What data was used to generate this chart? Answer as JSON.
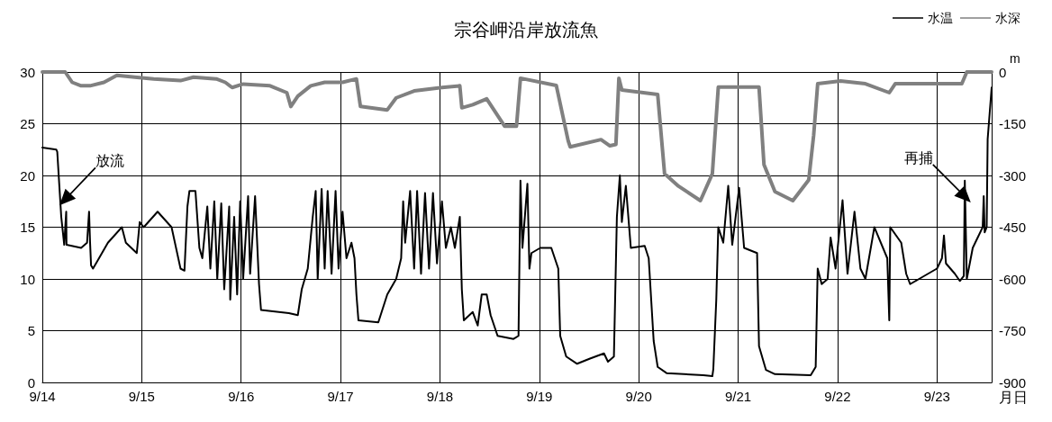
{
  "chart_data": {
    "type": "line",
    "title": "宗谷岬沿岸放流魚",
    "xlabel": "月日",
    "y2label": "m",
    "xlim": [
      "--09-14T00:00",
      "--09-23T13:12"
    ],
    "xticks": [
      {
        "value": "--09-14",
        "label": "9/14"
      },
      {
        "value": "--09-15",
        "label": "9/15"
      },
      {
        "value": "--09-16",
        "label": "9/16"
      },
      {
        "value": "--09-17",
        "label": "9/17"
      },
      {
        "value": "--09-18",
        "label": "9/18"
      },
      {
        "value": "--09-19",
        "label": "9/19"
      },
      {
        "value": "--09-20",
        "label": "9/20"
      },
      {
        "value": "--09-21",
        "label": "9/21"
      },
      {
        "value": "--09-22",
        "label": "9/22"
      },
      {
        "value": "--09-23",
        "label": "9/23"
      }
    ],
    "ylim": [
      0,
      30
    ],
    "yticks": [
      0,
      5,
      10,
      15,
      20,
      25,
      30
    ],
    "y2lim": [
      -900,
      0
    ],
    "y2ticks": [
      -900,
      -750,
      -600,
      -450,
      -300,
      -150,
      0
    ],
    "grid": true,
    "legend": "top right",
    "marker": "none",
    "line_style": "solid",
    "annotations": [
      "放流",
      "再捕"
    ],
    "series": [
      {
        "name": "水温",
        "color": "#000000",
        "x": [
          "--09-14T00:00",
          "--09-14T03:22",
          "--09-14T03:36",
          "--09-14T04:34",
          "--09-14T05:17",
          "--09-14T05:46",
          "--09-14T05:50",
          "--09-14T09:22",
          "--09-14T10:48",
          "--09-14T11:17",
          "--09-14T11:31",
          "--09-14T11:46",
          "--09-14T12:14",
          "--09-14T13:41",
          "--09-14T15:50",
          "--09-14T19:12",
          "--09-14T20:10",
          "--09-14T22:48",
          "--09-14T23:31",
          "--09-15T00:29",
          "--09-15T03:50",
          "--09-15T07:12",
          "--09-15T09:22",
          "--09-15T10:19",
          "--09-15T11:02",
          "--09-15T11:31",
          "--09-15T12:58",
          "--09-15T13:55",
          "--09-15T14:38",
          "--09-15T15:50",
          "--09-15T16:34",
          "--09-15T17:31",
          "--09-15T18:14",
          "--09-15T19:12",
          "--09-15T19:55",
          "--09-15T21:07",
          "--09-15T21:22",
          "--09-15T22:19",
          "--09-15T23:02",
          "--09-15T23:46",
          "--09-16T00:29",
          "--09-16T01:41",
          "--09-16T02:10",
          "--09-16T03:22",
          "--09-16T04:19",
          "--09-16T04:48",
          "--09-16T11:31",
          "--09-16T13:41",
          "--09-16T14:38",
          "--09-16T16:05",
          "--09-16T17:17",
          "--09-16T18:00",
          "--09-16T18:29",
          "--09-16T19:26",
          "--09-16T20:10",
          "--09-16T20:53",
          "--09-16T21:50",
          "--09-16T22:48",
          "--09-16T23:31",
          "--09-17T00:29",
          "--09-17T01:26",
          "--09-17T02:38",
          "--09-17T03:22",
          "--09-17T03:50",
          "--09-17T04:19",
          "--09-17T09:07",
          "--09-17T11:17",
          "--09-17T13:26",
          "--09-17T14:38",
          "--09-17T15:07",
          "--09-17T15:36",
          "--09-17T16:48",
          "--09-17T17:46",
          "--09-17T18:29",
          "--09-17T19:26",
          "--09-17T20:24",
          "--09-17T21:22",
          "--09-17T22:19",
          "--09-17T23:17",
          "--09-18T00:29",
          "--09-18T01:26",
          "--09-18T02:38",
          "--09-18T03:36",
          "--09-18T04:48",
          "--09-18T05:17",
          "--09-18T05:46",
          "--09-18T07:55",
          "--09-18T09:07",
          "--09-18T10:05",
          "--09-18T11:17",
          "--09-18T12:14",
          "--09-18T13:55",
          "--09-18T17:46",
          "--09-18T18:58",
          "--09-18T19:26",
          "--09-18T19:55",
          "--09-18T21:07",
          "--09-18T21:36",
          "--09-18T22:05",
          "--09-19T00:14",
          "--09-19T02:53",
          "--09-19T04:34",
          "--09-19T05:02",
          "--09-19T06:29",
          "--09-19T09:07",
          "--09-19T12:14",
          "--09-19T15:36",
          "--09-19T16:34",
          "--09-19T18:00",
          "--09-19T18:43",
          "--09-19T19:26",
          "--09-19T19:55",
          "--09-19T20:53",
          "--09-19T22:05",
          "--09-20T01:26",
          "--09-20T02:24",
          "--09-20T03:36",
          "--09-20T04:34",
          "--09-20T06:43",
          "--09-20T15:36",
          "--09-20T17:46",
          "--09-20T18:00",
          "--09-20T18:43",
          "--09-20T19:12",
          "--09-20T20:24",
          "--09-20T21:36",
          "--09-20T22:34",
          "--09-21T00:14",
          "--09-21T01:26",
          "--09-21T04:34",
          "--09-21T05:02",
          "--09-21T06:43",
          "--09-21T08:53",
          "--09-21T17:31",
          "--09-21T18:43",
          "--09-21T19:12",
          "--09-21T20:10",
          "--09-21T21:36",
          "--09-21T22:19",
          "--09-21T23:31",
          "--09-22T01:12",
          "--09-22T02:24",
          "--09-22T04:05",
          "--09-22T05:31",
          "--09-22T06:43",
          "--09-22T08:53",
          "--09-22T12:00",
          "--09-22T12:29",
          "--09-22T12:43",
          "--09-22T15:22",
          "--09-22T16:34",
          "--09-22T17:31",
          "--09-22T19:41",
          "--09-22T21:50",
          "--09-23T00:00",
          "--09-23T01:12",
          "--09-23T01:41",
          "--09-23T02:10",
          "--09-23T04:19",
          "--09-23T05:31",
          "--09-23T06:29",
          "--09-23T06:43",
          "--09-23T07:12",
          "--09-23T08:38",
          "--09-23T11:02",
          "--09-23T11:17",
          "--09-23T11:31",
          "--09-23T12:00",
          "--09-23T12:14",
          "--09-23T13:12"
        ],
        "values": [
          22.7,
          22.5,
          22.3,
          16,
          13.3,
          16.5,
          13.3,
          13,
          13.5,
          16.5,
          13.6,
          11.3,
          11,
          12,
          13.5,
          15,
          13.5,
          12.5,
          15.5,
          15,
          16.5,
          15,
          11,
          10.8,
          17,
          18.5,
          18.5,
          13,
          12,
          17,
          11,
          17.5,
          10,
          17.3,
          9,
          17,
          8,
          16,
          8.5,
          17.5,
          10,
          18,
          10.5,
          18,
          9.5,
          7,
          6.7,
          6.5,
          9,
          11,
          16,
          18.5,
          10,
          18.7,
          11,
          18.5,
          10.5,
          18.5,
          11,
          16.5,
          12,
          13.5,
          12,
          8.5,
          6,
          5.8,
          8.5,
          10,
          12,
          17.5,
          13.5,
          18.5,
          11,
          18.5,
          10.5,
          18.3,
          11,
          18.3,
          11.5,
          17.5,
          13,
          15,
          13,
          16,
          9,
          6,
          6.8,
          5.5,
          8.5,
          8.5,
          6.5,
          4.5,
          4.2,
          4.5,
          19.5,
          13,
          19.2,
          11,
          12.5,
          13,
          13,
          11,
          4.5,
          2.5,
          1.8,
          2.3,
          2.8,
          2,
          2.5,
          16,
          20,
          15.5,
          19,
          13,
          13.2,
          12,
          4,
          1.5,
          0.9,
          0.7,
          0.6,
          1.3,
          8,
          15,
          13.5,
          19,
          13.3,
          18.8,
          13,
          12.5,
          3.5,
          1.2,
          0.8,
          0.7,
          1.5,
          11,
          9.5,
          10,
          14,
          11,
          17.6,
          10.5,
          16.5,
          11,
          10,
          15,
          12,
          6,
          15,
          13.5,
          10.5,
          9.5,
          10,
          10.5,
          11,
          12,
          14.2,
          11.5,
          10.5,
          9.8,
          10.3,
          19.5,
          10,
          13,
          15,
          18,
          14.5,
          15,
          23.5,
          28.5
        ]
      },
      {
        "name": "水深",
        "color": "#808080",
        "axis": "y2",
        "x": [
          "--09-14T00:00",
          "--09-14T05:31",
          "--09-14T07:12",
          "--09-14T09:22",
          "--09-14T11:31",
          "--09-14T14:53",
          "--09-14T18:00",
          "--09-14T22:19",
          "--09-15T02:53",
          "--09-15T09:22",
          "--09-15T12:29",
          "--09-15T18:00",
          "--09-15T20:10",
          "--09-15T21:50",
          "--09-16T00:29",
          "--09-16T06:58",
          "--09-16T11:02",
          "--09-16T12:00",
          "--09-16T13:41",
          "--09-16T16:48",
          "--09-16T20:10",
          "--09-17T00:29",
          "--09-17T03:50",
          "--09-17T04:48",
          "--09-17T11:17",
          "--09-17T13:26",
          "--09-17T17:46",
          "--09-18T00:29",
          "--09-18T04:48",
          "--09-18T05:17",
          "--09-18T07:55",
          "--09-18T11:17",
          "--09-18T15:36",
          "--09-18T18:29",
          "--09-18T19:26",
          "--09-19T04:05",
          "--09-19T06:58",
          "--09-19T07:26",
          "--09-19T14:53",
          "--09-19T17:02",
          "--09-19T18:29",
          "--09-19T19:12",
          "--09-19T19:55",
          "--09-20T04:34",
          "--09-20T06:14",
          "--09-20T09:36",
          "--09-20T14:53",
          "--09-20T17:46",
          "--09-20T19:12",
          "--09-21T05:02",
          "--09-21T06:14",
          "--09-21T08:53",
          "--09-21T13:12",
          "--09-21T17:02",
          "--09-21T18:14",
          "--09-21T19:12",
          "--09-22T00:43",
          "--09-22T06:43",
          "--09-22T12:29",
          "--09-22T13:55",
          "--09-23T06:00",
          "--09-23T07:12",
          "--09-23T13:12"
        ],
        "values": [
          0,
          0,
          -30,
          -40,
          -40,
          -30,
          -10,
          -15,
          -20,
          -25,
          -15,
          -20,
          -30,
          -45,
          -35,
          -40,
          -60,
          -100,
          -70,
          -40,
          -30,
          -30,
          -20,
          -100,
          -110,
          -75,
          -55,
          -45,
          -40,
          -104,
          -95,
          -78,
          -157,
          -157,
          -18,
          -39,
          -200,
          -217,
          -196,
          -214,
          -210,
          -18,
          -52,
          -65,
          -295,
          -331,
          -373,
          -295,
          -44,
          -44,
          -269,
          -347,
          -373,
          -313,
          -183,
          -34,
          -26,
          -34,
          -60,
          -34,
          -34,
          0,
          0
        ]
      }
    ]
  }
}
